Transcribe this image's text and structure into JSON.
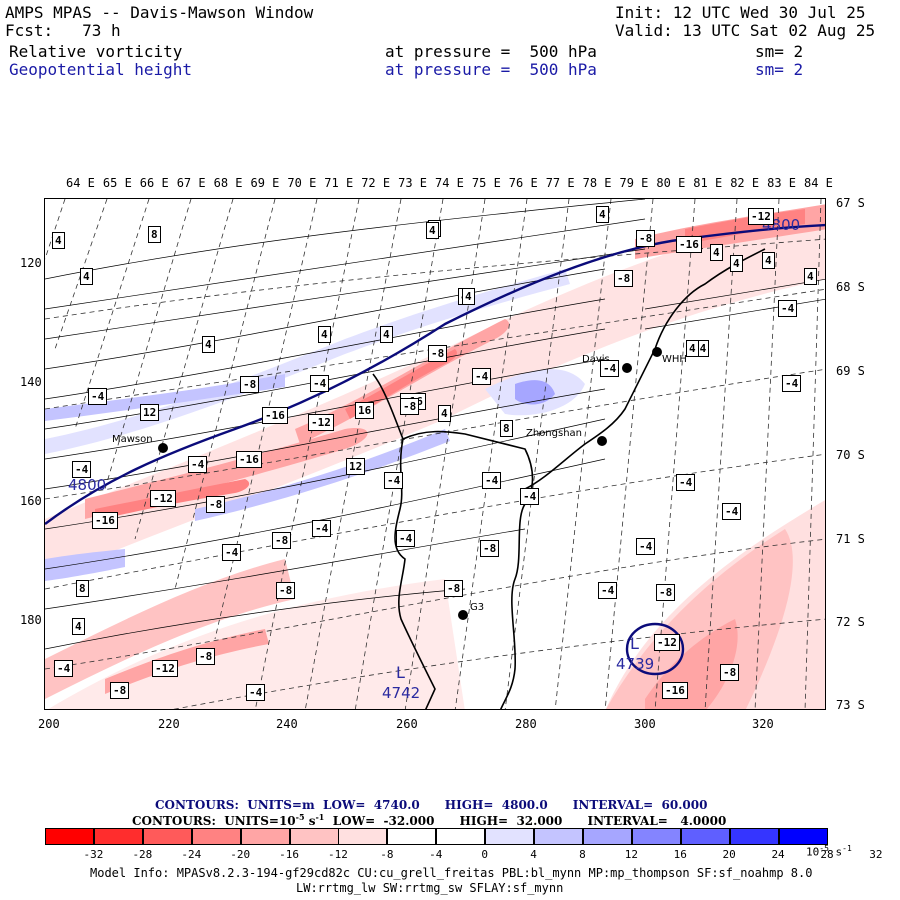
{
  "header": {
    "title": "AMPS MPAS -- Davis-Mawson Window",
    "fcst_label": "Fcst:",
    "fcst_value": "73 h",
    "init": "Init: 12 UTC Wed 30 Jul 25",
    "valid": "Valid: 13 UTC Sat 02 Aug 25",
    "field1": {
      "name": "Relative vorticity",
      "pressure": "at pressure =  500 hPa",
      "sm": "sm= 2"
    },
    "field2": {
      "name": "Geopotential height",
      "pressure": "at pressure =  500 hPa",
      "sm": "sm= 2"
    }
  },
  "map": {
    "lon_labels": [
      "64 E",
      "65 E",
      "66 E",
      "67 E",
      "68 E",
      "69 E",
      "70 E",
      "71 E",
      "72 E",
      "73 E",
      "74 E",
      "75 E",
      "76 E",
      "77 E",
      "78 E",
      "79 E",
      "80 E",
      "81 E",
      "82 E",
      "83 E",
      "84 E"
    ],
    "lat_labels": [
      "67 S",
      "68 S",
      "69 S",
      "70 S",
      "71 S",
      "72 S",
      "73 S"
    ],
    "y_ticks": [
      "120",
      "140",
      "160",
      "180"
    ],
    "x_ticks": [
      "200",
      "220",
      "240",
      "260",
      "280",
      "300",
      "320"
    ],
    "stations": [
      {
        "name": "Mawson"
      },
      {
        "name": "Davis"
      },
      {
        "name": "WHH"
      },
      {
        "name": "Zhongshan"
      },
      {
        "name": "G3"
      }
    ],
    "height_labels": [
      "4800",
      "4800",
      "L",
      "4742",
      "L",
      "4739"
    ],
    "vort_labels": [
      "-4",
      "4",
      "8",
      "-8",
      "12",
      "-12",
      "-16",
      "16"
    ]
  },
  "legend": {
    "line1": {
      "label": "CONTOURS:",
      "units": "UNITS=m",
      "low": "LOW=  4740.0",
      "high": "HIGH=  4800.0",
      "interval": "INTERVAL=  60.000"
    },
    "line2": {
      "label": "CONTOURS:",
      "units": "UNITS=10",
      "units_exp": "-5",
      "units_tail": " s",
      "units_tail_exp": "-1",
      "low": "LOW=  -32.000",
      "high": "HIGH=  32.000",
      "interval": "INTERVAL=   4.0000"
    },
    "colorbar_labels": [
      "-32",
      "-28",
      "-24",
      "-20",
      "-16",
      "-12",
      "-8",
      "-4",
      "0",
      "4",
      "8",
      "12",
      "16",
      "20",
      "24",
      "28",
      "32"
    ],
    "colorbar_unit": "10",
    "colorbar_unit_exp": "-5",
    "colorbar_unit_tail": " s",
    "colorbar_unit_tail_exp": "-1",
    "colors": [
      "#ff0000",
      "#ff2d2d",
      "#ff5a5a",
      "#ff8282",
      "#ffa5a5",
      "#ffc3c3",
      "#ffe0e0",
      "#ffffff",
      "#ffffff",
      "#e2e2ff",
      "#c4c4ff",
      "#a6a6ff",
      "#8484ff",
      "#5f5fff",
      "#3535ff",
      "#0000ff"
    ]
  },
  "model_info": {
    "line1": "Model Info: MPASv8.2.3-194-gf29cd82c CU:cu_grell_freitas PBL:bl_mynn MP:mp_thompson SF:sf_noahmp 8.0",
    "line2": "LW:rrtmg_lw SW:rrtmg_sw SFLAY:sf_mynn"
  }
}
